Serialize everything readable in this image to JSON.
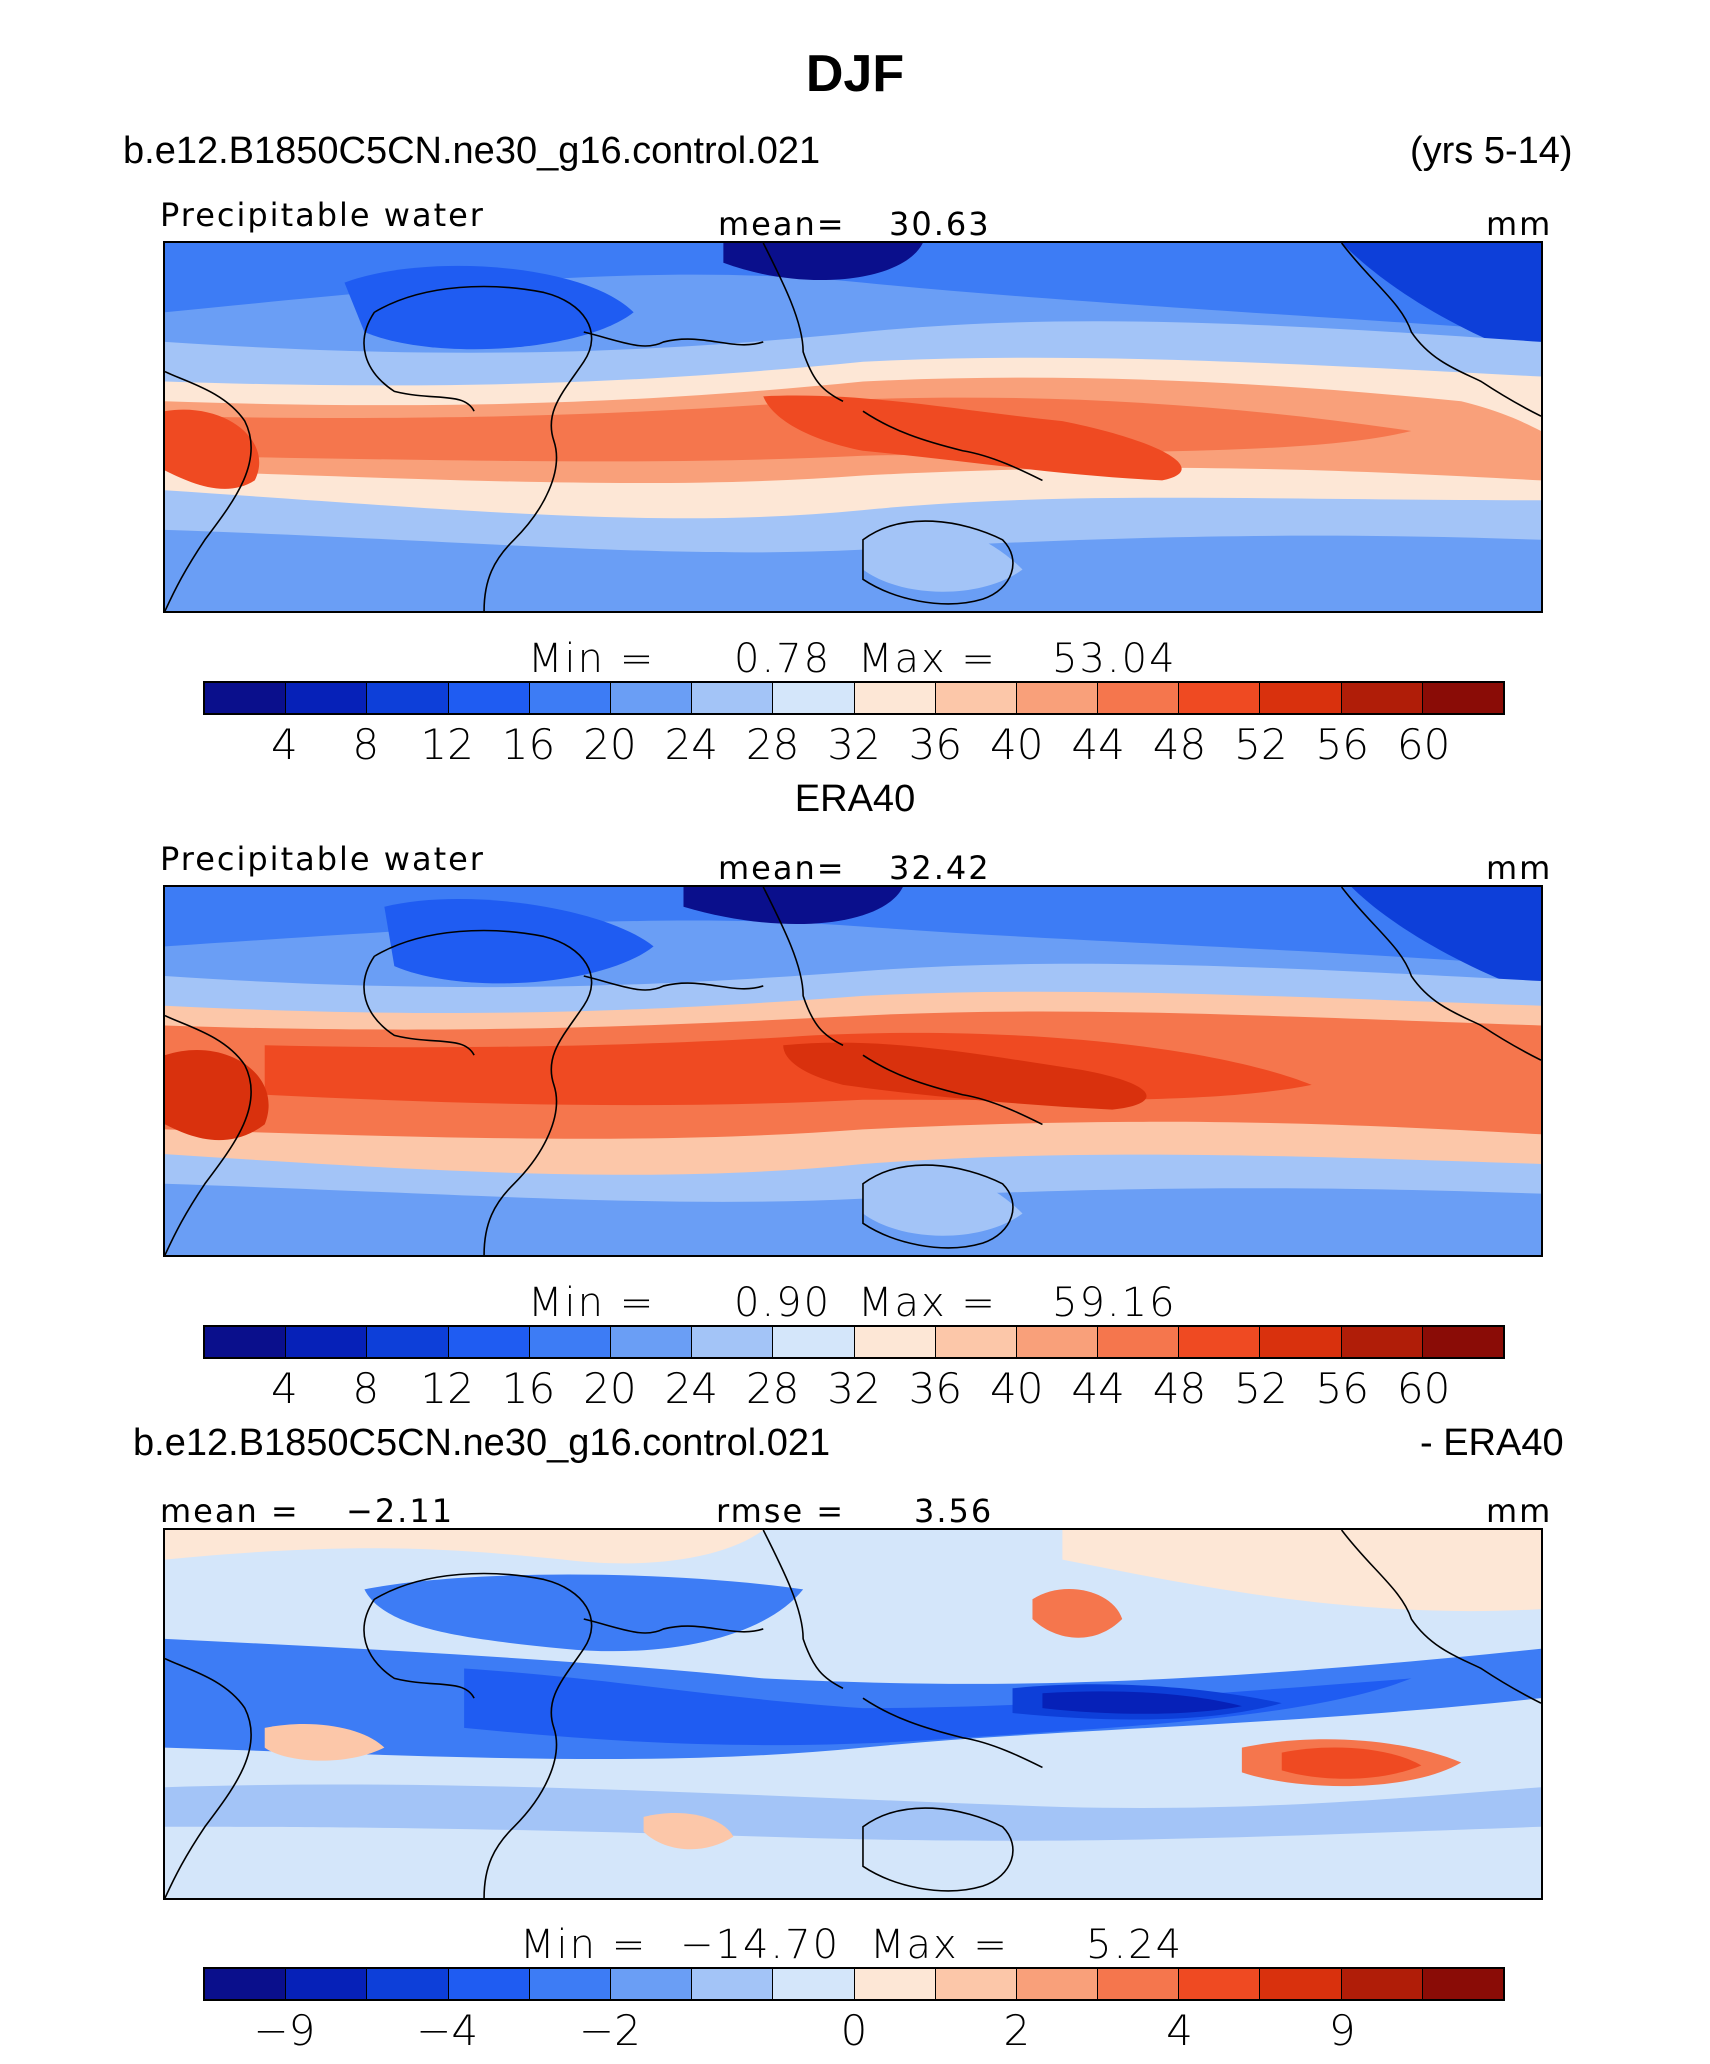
{
  "figure": {
    "title": "DJF",
    "model_name": "b.e12.B1850C5CN.ne30_g16.control.021",
    "years": "(yrs 5-14)",
    "obs_name": "ERA40",
    "diff_model_name": "b.e12.B1850C5CN.ne30_g16.control.021",
    "diff_suffix": "- ERA40"
  },
  "colors": {
    "palette": [
      "#0a0f8c",
      "#0621b8",
      "#0d3fd9",
      "#1f5cf2",
      "#3d7cf5",
      "#6a9ef5",
      "#a3c4f7",
      "#d4e6fa",
      "#fde7d6",
      "#fcc7a9",
      "#f9a07a",
      "#f5764d",
      "#ef4a22",
      "#d9310d",
      "#b01d08",
      "#8a0c06"
    ]
  },
  "chart_data": [
    {
      "type": "heatmap",
      "panel": "model",
      "variable_label": "Precipitable water",
      "mean_label": "mean=",
      "mean_value": "30.63",
      "units": "mm",
      "min_label": "Min =",
      "min_value": "0.78",
      "max_label": "Max =",
      "max_value": "53.04",
      "colorbar_levels": [
        "4",
        "8",
        "12",
        "16",
        "20",
        "24",
        "28",
        "32",
        "36",
        "40",
        "44",
        "48",
        "52",
        "56",
        "60"
      ],
      "min": 0.78,
      "max": 53.04,
      "mean": 30.63
    },
    {
      "type": "heatmap",
      "panel": "obs",
      "variable_label": "Precipitable water",
      "mean_label": "mean=",
      "mean_value": "32.42",
      "units": "mm",
      "min_label": "Min =",
      "min_value": "0.90",
      "max_label": "Max =",
      "max_value": "59.16",
      "colorbar_levels": [
        "4",
        "8",
        "12",
        "16",
        "20",
        "24",
        "28",
        "32",
        "36",
        "40",
        "44",
        "48",
        "52",
        "56",
        "60"
      ],
      "min": 0.9,
      "max": 59.16,
      "mean": 32.42
    },
    {
      "type": "heatmap",
      "panel": "difference",
      "mean_label": "mean =",
      "mean_value": "−2.11",
      "rmse_label": "rmse =",
      "rmse_value": "3.56",
      "units": "mm",
      "min_label": "Min =",
      "min_value": "−14.70",
      "max_label": "Max =",
      "max_value": "5.24",
      "colorbar_labels": [
        {
          "label": "−9",
          "boundary": 1
        },
        {
          "label": "−4",
          "boundary": 3
        },
        {
          "label": "−2",
          "boundary": 5
        },
        {
          "label": "0",
          "boundary": 8
        },
        {
          "label": "2",
          "boundary": 10
        },
        {
          "label": "4",
          "boundary": 12
        },
        {
          "label": "9",
          "boundary": 14
        }
      ],
      "min": -14.7,
      "max": 5.24,
      "mean": -2.11,
      "rmse": 3.56
    }
  ]
}
